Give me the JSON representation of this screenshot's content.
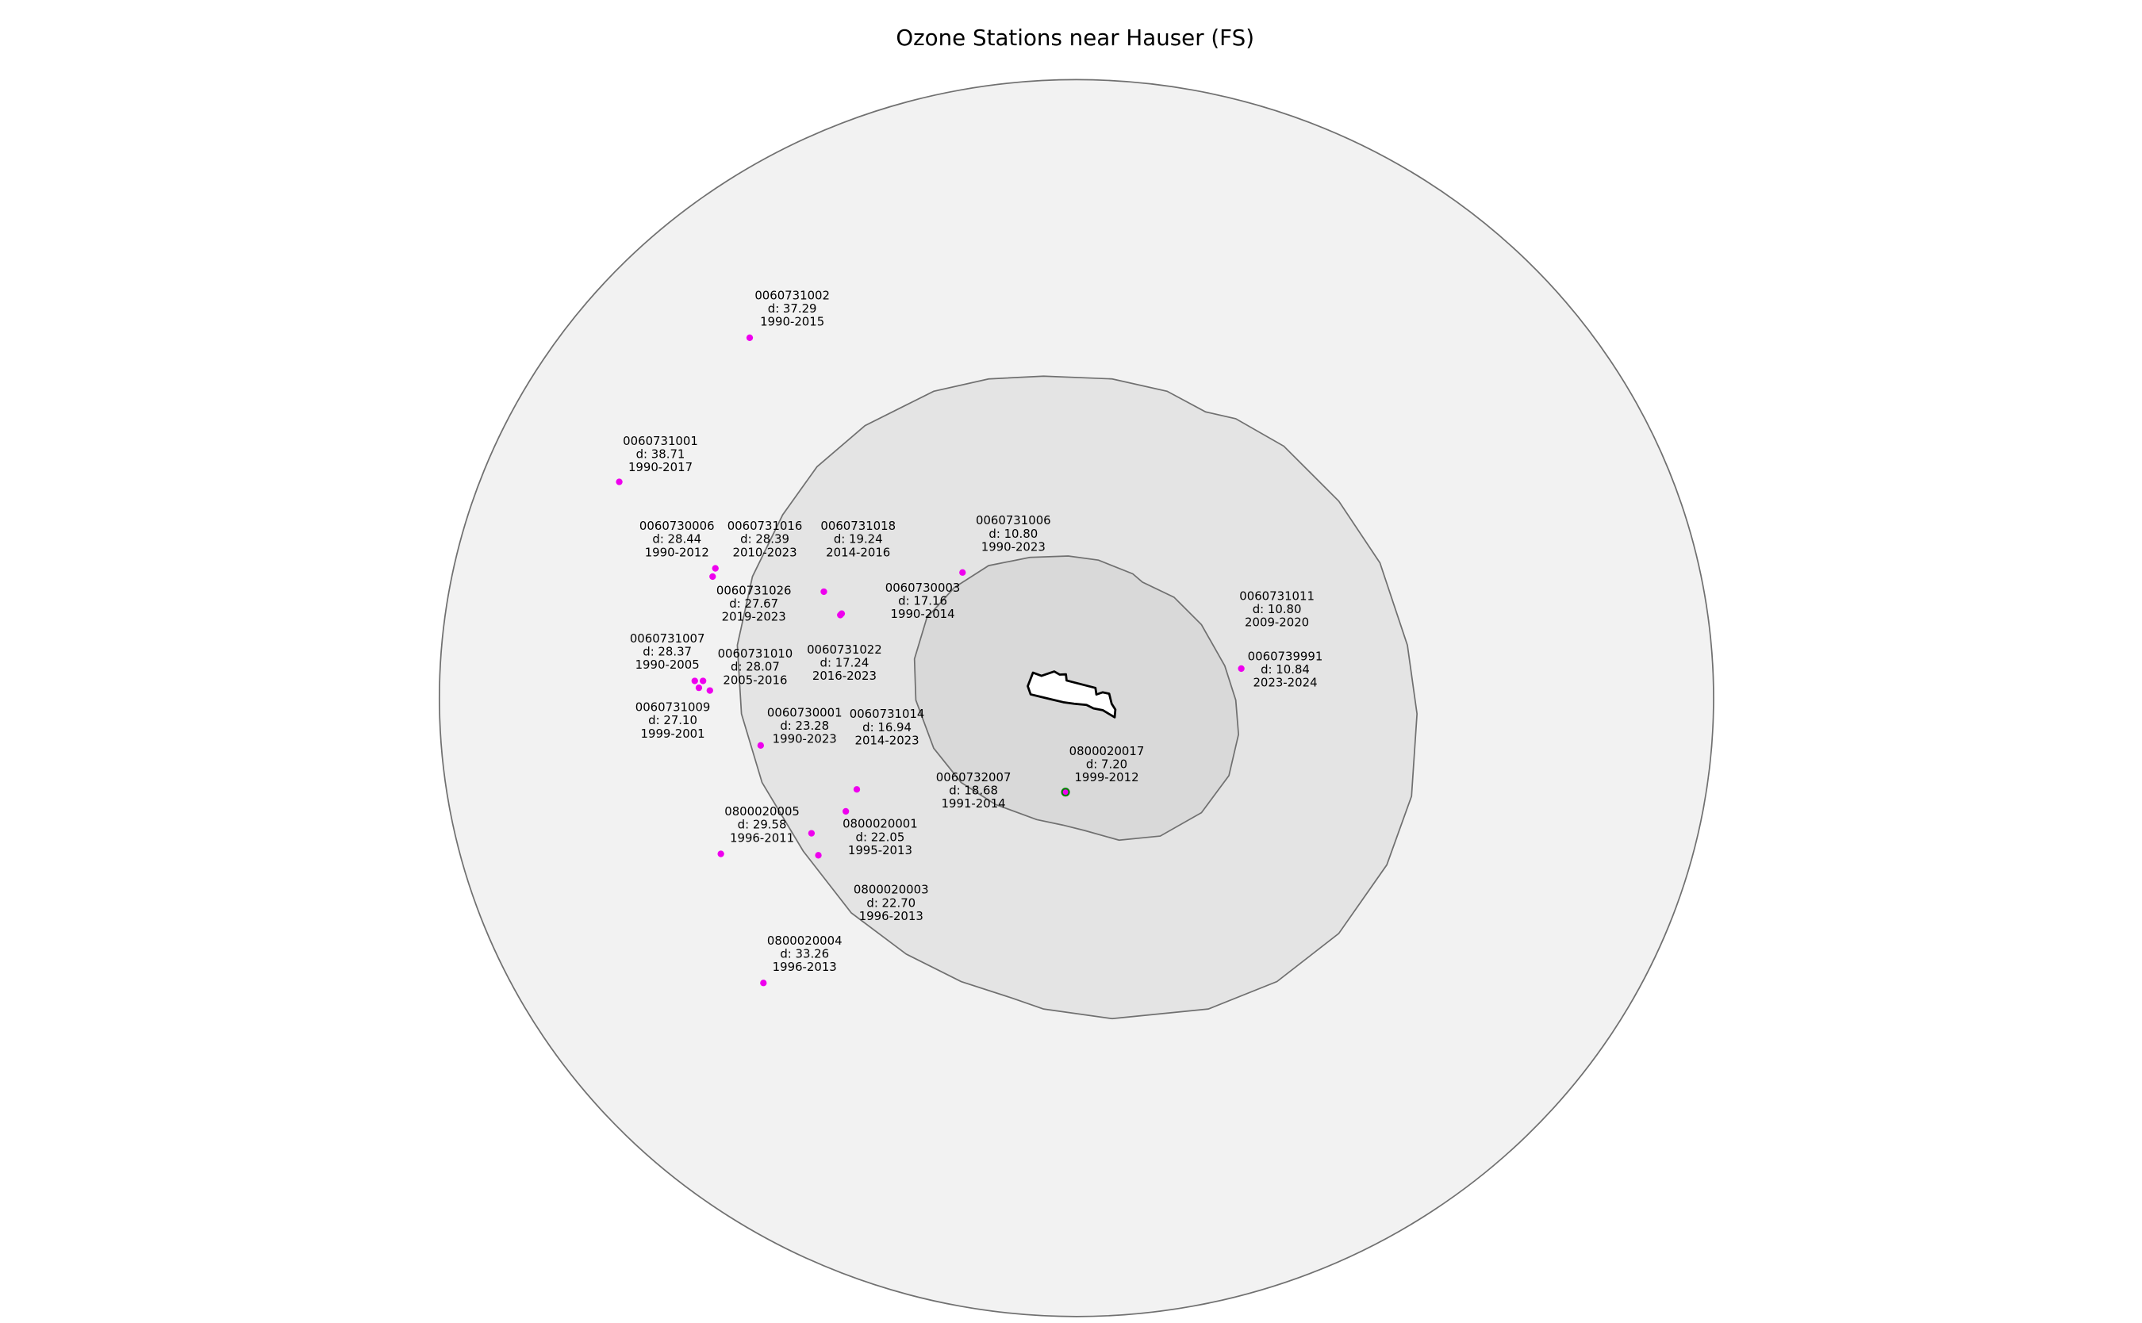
{
  "title": "Ozone Stations near Hauser (FS)",
  "colors": {
    "outer_zone": "#f2f2f2",
    "middle_zone": "#e4e4e4",
    "inner_zone": "#d9d9d9",
    "zone_edge": "#707070",
    "station": "#ee00ee",
    "closest_station_edge": "#008000",
    "area_fill": "#ffffff",
    "area_edge": "#000000"
  },
  "stations": [
    {
      "id": "0060731002",
      "distance": "d: 37.29",
      "years": "1990-2015"
    },
    {
      "id": "0060731001",
      "distance": "d: 38.71",
      "years": "1990-2017"
    },
    {
      "id": "0060730006",
      "distance": "d: 28.44",
      "years": "1990-2012"
    },
    {
      "id": "0060731016",
      "distance": "d: 28.39",
      "years": "2010-2023"
    },
    {
      "id": "0060731018",
      "distance": "d: 19.24",
      "years": "2014-2016"
    },
    {
      "id": "0060731006",
      "distance": "d: 10.80",
      "years": "1990-2023"
    },
    {
      "id": "0060731026",
      "distance": "d: 27.67",
      "years": "2019-2023"
    },
    {
      "id": "0060730003",
      "distance": "d: 17.16",
      "years": "1990-2014"
    },
    {
      "id": "0060731011",
      "distance": "d: 10.80",
      "years": "2009-2020"
    },
    {
      "id": "0060739991",
      "distance": "d: 10.84",
      "years": "2023-2024"
    },
    {
      "id": "0060731007",
      "distance": "d: 28.37",
      "years": "1990-2005"
    },
    {
      "id": "0060731010",
      "distance": "d: 28.07",
      "years": "2005-2016"
    },
    {
      "id": "0060731022",
      "distance": "d: 17.24",
      "years": "2016-2023"
    },
    {
      "id": "0060731009",
      "distance": "d: 27.10",
      "years": "1999-2001"
    },
    {
      "id": "0060730001",
      "distance": "d: 23.28",
      "years": "1990-2023"
    },
    {
      "id": "0060731014",
      "distance": "d: 16.94",
      "years": "2014-2023"
    },
    {
      "id": "0800020017",
      "distance": "d: 7.20",
      "years": "1999-2012"
    },
    {
      "id": "0060732007",
      "distance": "d: 18.68",
      "years": "1991-2014"
    },
    {
      "id": "0800020005",
      "distance": "d: 29.58",
      "years": "1996-2011"
    },
    {
      "id": "0800020001",
      "distance": "d: 22.05",
      "years": "1995-2013"
    },
    {
      "id": "0800020003",
      "distance": "d: 22.70",
      "years": "1996-2013"
    },
    {
      "id": "0800020004",
      "distance": "d: 33.26",
      "years": "1996-2013"
    }
  ]
}
